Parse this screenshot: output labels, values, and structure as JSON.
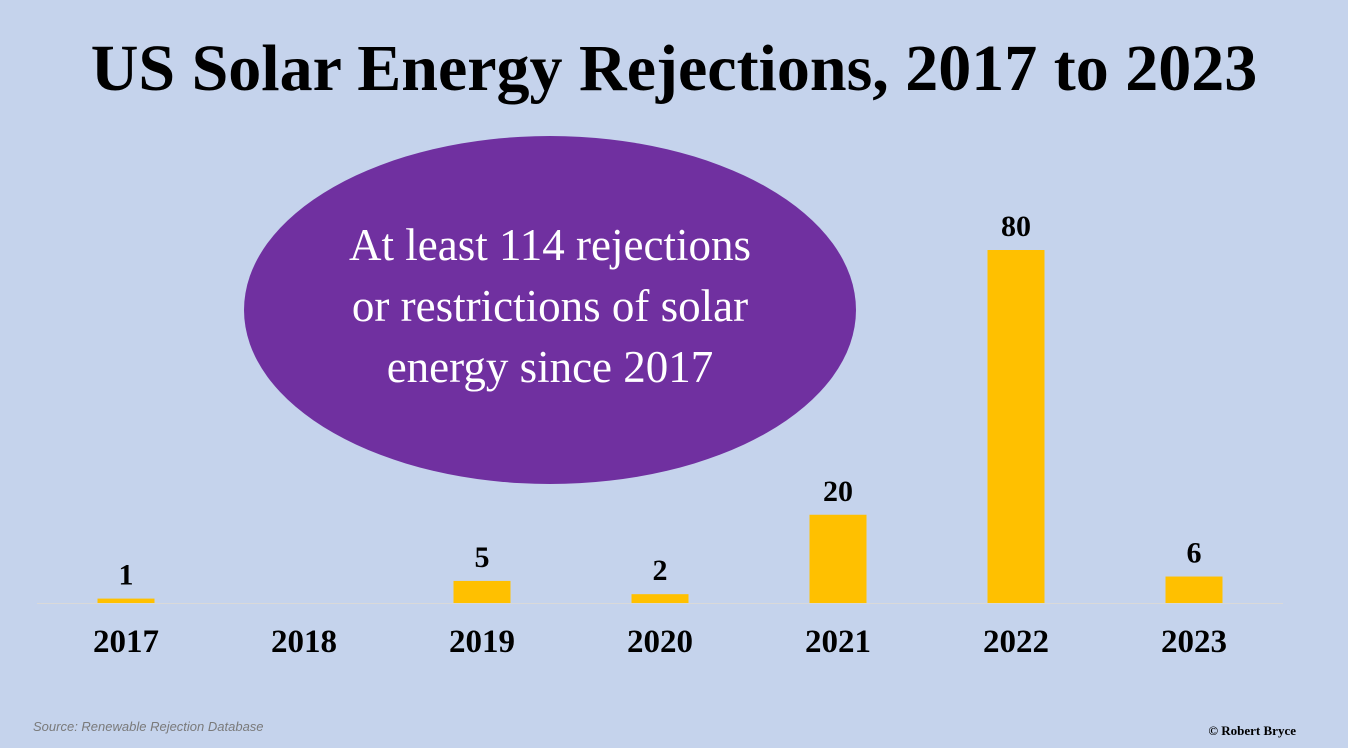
{
  "chart_data": {
    "type": "bar",
    "title": "US Solar Energy Rejections, 2017 to 2023",
    "categories": [
      "2017",
      "2018",
      "2019",
      "2020",
      "2021",
      "2022",
      "2023"
    ],
    "values": [
      1,
      null,
      5,
      2,
      20,
      80,
      6
    ],
    "value_labels": [
      "1",
      "",
      "5",
      "2",
      "20",
      "80",
      "6"
    ],
    "xlabel": "",
    "ylabel": "",
    "ylim": [
      0,
      80
    ],
    "grid": false,
    "legend": "none",
    "bar_color": "#ffc000"
  },
  "callout": {
    "text": "At least 114 rejections or restrictions of solar energy since 2017",
    "background_color": "#7030a0",
    "text_color": "#ffffff"
  },
  "source": "Source: Renewable Rejection Database",
  "credit": "© Robert Bryce",
  "colors": {
    "background": "#c5d3ec",
    "baseline": "#d9d9d9"
  }
}
